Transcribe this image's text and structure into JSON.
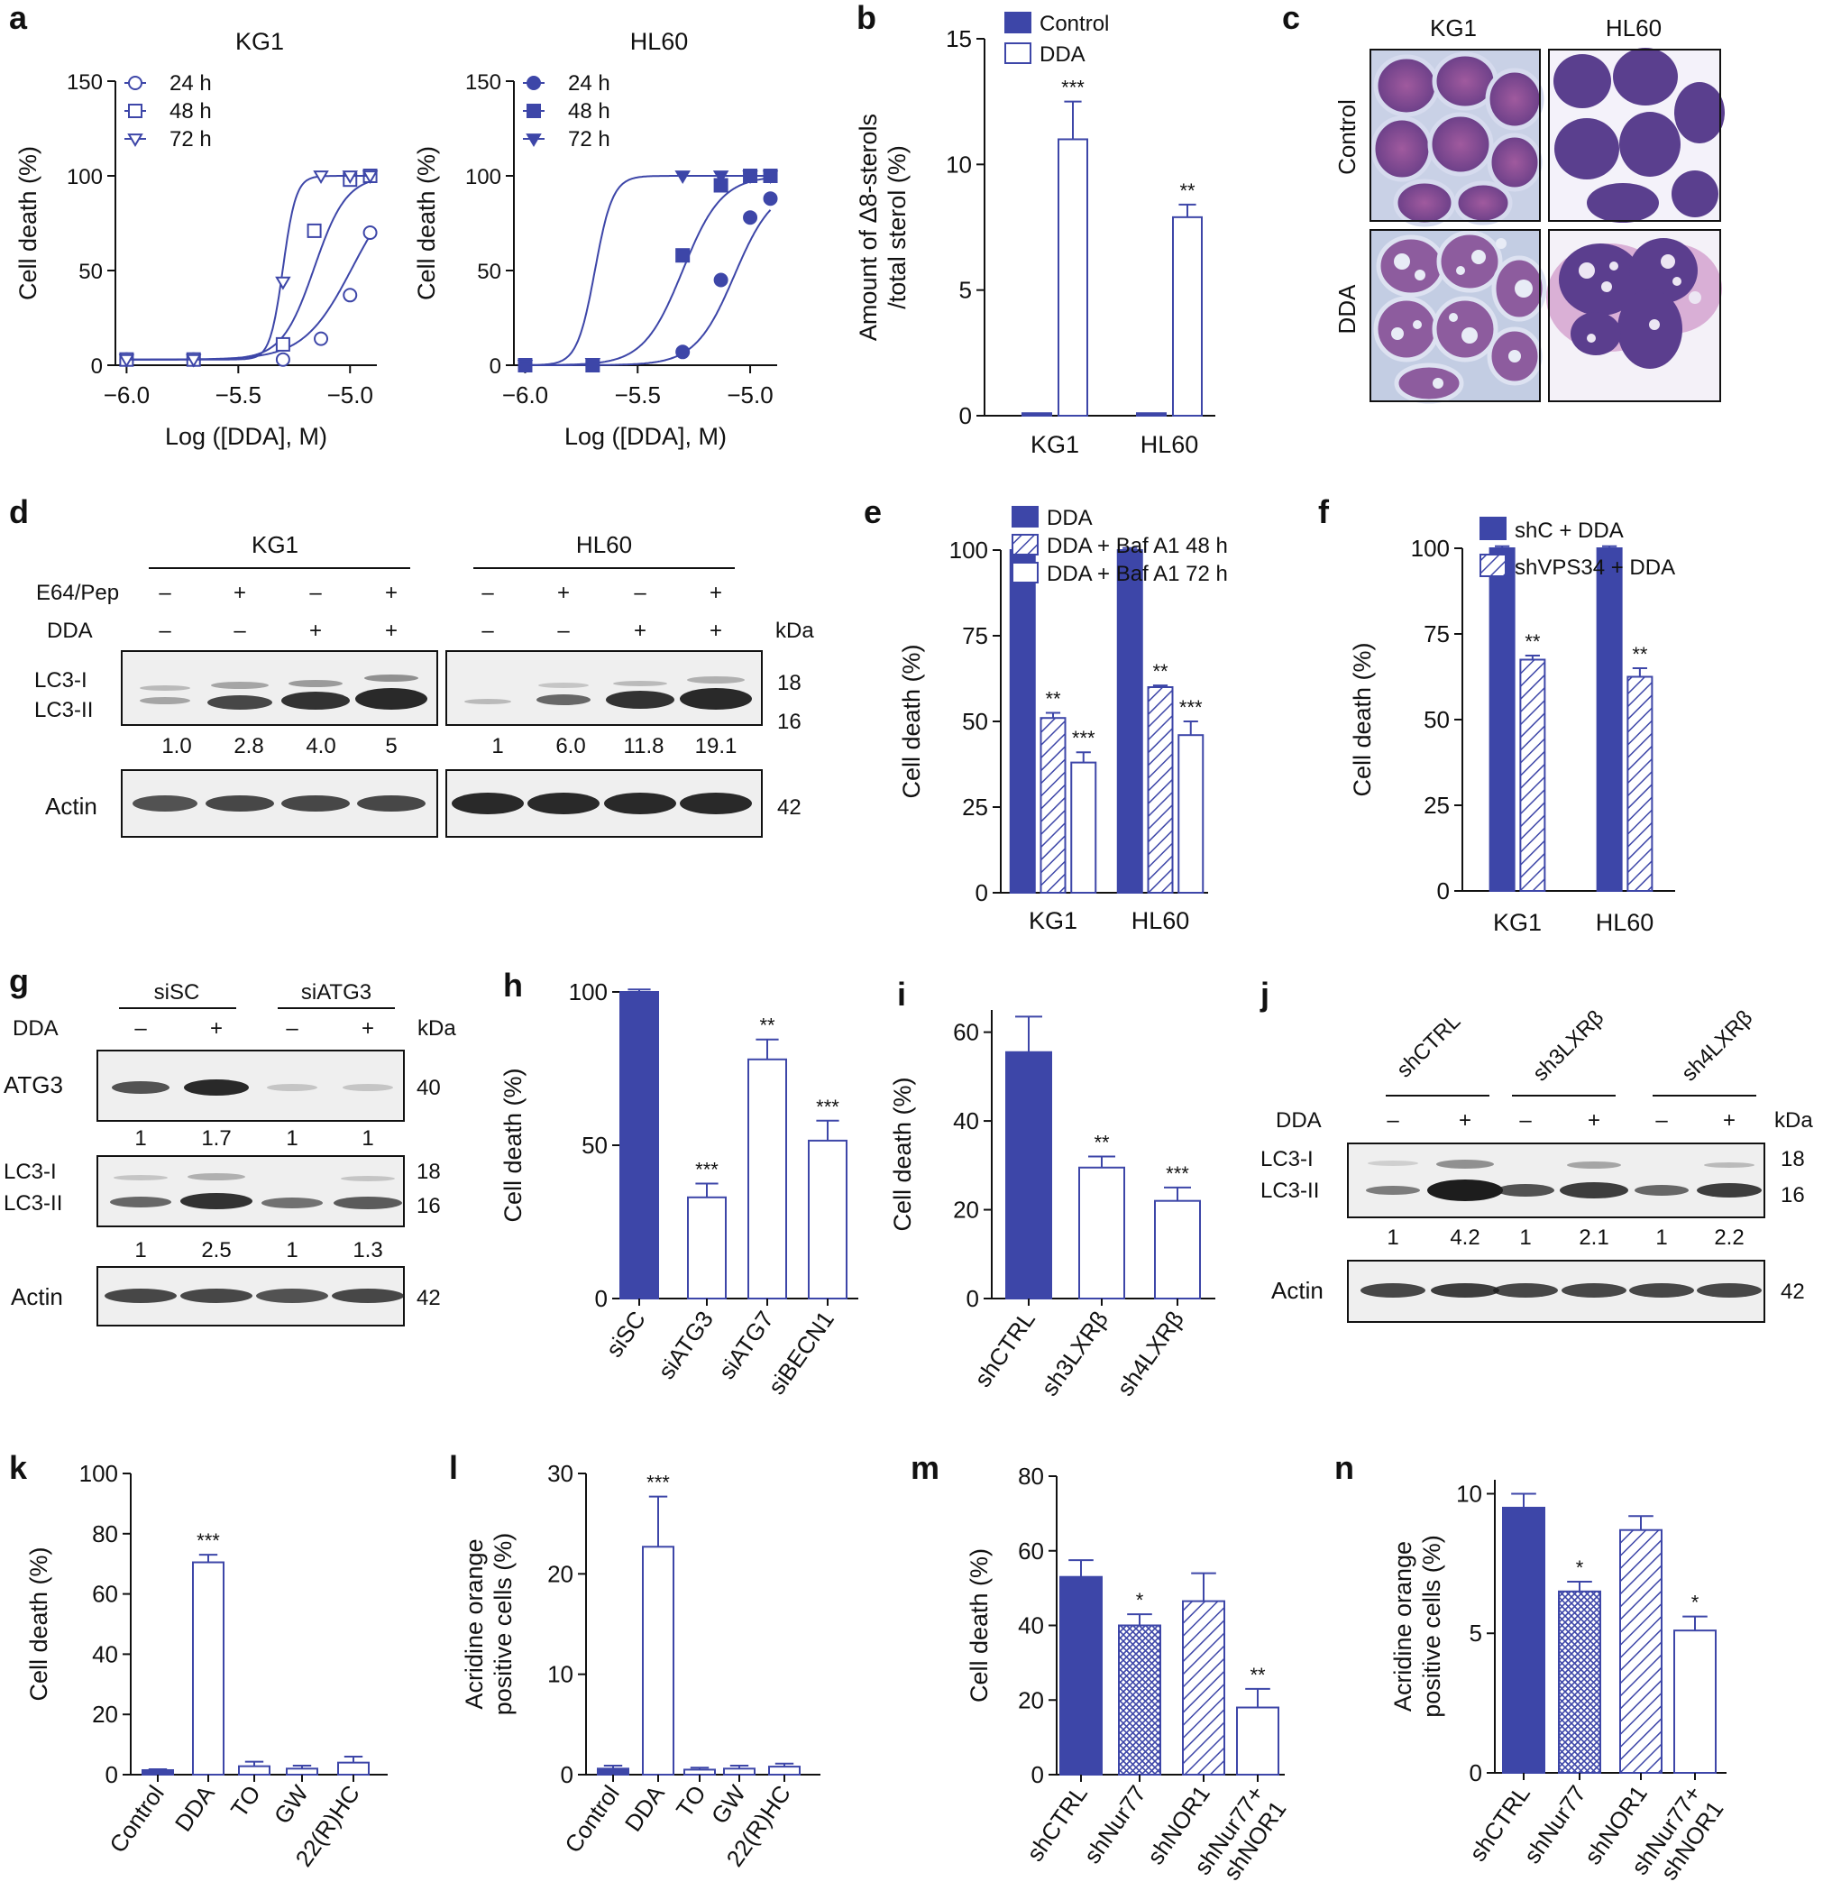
{
  "colors": {
    "blue": "#3d46a8",
    "outline": "#3d46a8",
    "white": "#ffffff"
  },
  "panels": {
    "a": "a",
    "b": "b",
    "c": "c",
    "d": "d",
    "e": "e",
    "f": "f",
    "g": "g",
    "h": "h",
    "i": "i",
    "j": "j",
    "k": "k",
    "l": "l",
    "m": "m",
    "n": "n"
  },
  "microscopy": {
    "cols": [
      "KG1",
      "HL60"
    ],
    "rows": [
      "Control",
      "DDA"
    ],
    "image_desc": "Stained KG1 and HL60 cells, control vs DDA-treated (vacuolated)"
  },
  "blot_d": {
    "groups": [
      "KG1",
      "HL60"
    ],
    "row_labels": [
      "E64/Pep",
      "DDA"
    ],
    "e64": [
      "–",
      "+",
      "–",
      "+",
      "–",
      "+",
      "–",
      "+"
    ],
    "dda": [
      "–",
      "–",
      "+",
      "+",
      "–",
      "–",
      "+",
      "+"
    ],
    "kda": "kDa",
    "bands": [
      "LC3-I",
      "LC3-II"
    ],
    "quant": [
      "1.0",
      "2.8",
      "4.0",
      "5",
      "1",
      "6.0",
      "11.8",
      "19.1"
    ],
    "actin": "Actin",
    "mw": [
      "18",
      "16",
      "42"
    ]
  },
  "blot_g": {
    "groups": [
      "siSC",
      "siATG3"
    ],
    "row_label": "DDA",
    "dda": [
      "–",
      "+",
      "–",
      "+"
    ],
    "kda": "kDa",
    "atg3": "ATG3",
    "atg3_quant": [
      "1",
      "1.7",
      "1",
      "1"
    ],
    "bands": [
      "LC3-I",
      "LC3-II"
    ],
    "lc3_quant": [
      "1",
      "2.5",
      "1",
      "1.3"
    ],
    "actin": "Actin",
    "mw": [
      "40",
      "18",
      "16",
      "42"
    ]
  },
  "blot_j": {
    "groups": [
      "shCTRL",
      "sh3LXRβ",
      "sh4LXRβ"
    ],
    "row_label": "DDA",
    "dda": [
      "–",
      "+",
      "–",
      "+",
      "–",
      "+"
    ],
    "kda": "kDa",
    "bands": [
      "LC3-I",
      "LC3-II"
    ],
    "quant": [
      "1",
      "4.2",
      "1",
      "2.1",
      "1",
      "2.2"
    ],
    "actin": "Actin",
    "mw": [
      "18",
      "16",
      "42"
    ]
  },
  "chart_data": [
    {
      "id": "a1",
      "type": "line",
      "title": "KG1",
      "xlabel": "Log ([DDA], M)",
      "ylabel": "Cell death (%)",
      "xlim": [
        -6.05,
        -4.88
      ],
      "ylim": [
        0,
        150
      ],
      "xticks": [
        -6.0,
        -5.5,
        -5.0
      ],
      "xticklabels": [
        "−6.0",
        "−5.5",
        "−5.0"
      ],
      "yticks": [
        0,
        50,
        100,
        150
      ],
      "series": [
        {
          "name": "24 h",
          "marker": "circle",
          "filled": false,
          "ec50": -4.99,
          "hill": 4,
          "top": 100,
          "bottom": 3,
          "x": [
            -6.0,
            -5.7,
            -5.3,
            -5.13,
            -5.0,
            -4.91
          ],
          "y": [
            3,
            3,
            3,
            14,
            37,
            70
          ]
        },
        {
          "name": "48 h",
          "marker": "square",
          "filled": false,
          "ec50": -5.16,
          "hill": 6,
          "top": 100,
          "bottom": 3,
          "x": [
            -6.0,
            -5.7,
            -5.3,
            -5.16,
            -5.0,
            -4.91
          ],
          "y": [
            3,
            3,
            11,
            71,
            98,
            100
          ]
        },
        {
          "name": "72 h",
          "marker": "triangle-down",
          "filled": false,
          "ec50": -5.3,
          "hill": 15,
          "top": 100,
          "bottom": 3,
          "x": [
            -6.0,
            -5.7,
            -5.3,
            -5.13,
            -5.0,
            -4.91
          ],
          "y": [
            3,
            3,
            44,
            100,
            100,
            100
          ]
        }
      ]
    },
    {
      "id": "a2",
      "type": "line",
      "title": "HL60",
      "xlabel": "Log ([DDA], M)",
      "ylabel": "Cell death (%)",
      "xlim": [
        -6.05,
        -4.88
      ],
      "ylim": [
        0,
        150
      ],
      "xticks": [
        -6.0,
        -5.5,
        -5.0
      ],
      "xticklabels": [
        "−6.0",
        "−5.5",
        "−5.0"
      ],
      "yticks": [
        0,
        50,
        100,
        150
      ],
      "series": [
        {
          "name": "24 h",
          "marker": "circle",
          "filled": true,
          "ec50": -5.07,
          "hill": 5,
          "top": 95,
          "bottom": 0,
          "x": [
            -6.0,
            -5.7,
            -5.3,
            -5.13,
            -5.0,
            -4.91
          ],
          "y": [
            0,
            0,
            7,
            45,
            78,
            88
          ]
        },
        {
          "name": "48 h",
          "marker": "square",
          "filled": true,
          "ec50": -5.3,
          "hill": 5,
          "top": 100,
          "bottom": 0,
          "x": [
            -6.0,
            -5.7,
            -5.3,
            -5.13,
            -5.0,
            -4.91
          ],
          "y": [
            0,
            0,
            58,
            95,
            100,
            100
          ]
        },
        {
          "name": "72 h",
          "marker": "triangle-down",
          "filled": true,
          "ec50": -5.69,
          "hill": 11,
          "top": 100,
          "bottom": 0,
          "x": [
            -6.0,
            -5.7,
            -5.3,
            -5.13,
            -5.0,
            -4.91
          ],
          "y": [
            0,
            1,
            100,
            100,
            100,
            100
          ]
        }
      ]
    },
    {
      "id": "b",
      "type": "bar",
      "categories": [
        "KG1",
        "HL60"
      ],
      "ylabel": "Amount of Δ8-sterols /total sterol (%)",
      "ylim": [
        0,
        15
      ],
      "yticks": [
        0,
        5,
        10,
        15
      ],
      "series": [
        {
          "name": "Control",
          "fill": "solid",
          "values": [
            0.1,
            0.1
          ]
        },
        {
          "name": "DDA",
          "fill": "open",
          "values": [
            11,
            7.9
          ]
        }
      ],
      "errors": [
        [
          0,
          0
        ],
        [
          1.5,
          0.5
        ]
      ],
      "sig": [
        [
          "",
          ""
        ],
        [
          "***",
          "**"
        ]
      ]
    },
    {
      "id": "e",
      "type": "bar",
      "categories": [
        "KG1",
        "HL60"
      ],
      "ylabel": "Cell death (%)",
      "ylim": [
        0,
        100
      ],
      "yticks": [
        0,
        25,
        50,
        75,
        100
      ],
      "series": [
        {
          "name": "DDA",
          "fill": "solid",
          "values": [
            100,
            100
          ]
        },
        {
          "name": "DDA + Baf A1 48 h",
          "fill": "hatch",
          "values": [
            51,
            60
          ]
        },
        {
          "name": "DDA + Baf A1 72 h",
          "fill": "open",
          "values": [
            38,
            46
          ]
        }
      ],
      "errors": [
        [
          0.6,
          0.6
        ],
        [
          1.5,
          0.5
        ],
        [
          3,
          4
        ]
      ],
      "sig": [
        [
          "",
          ""
        ],
        [
          "**",
          "**"
        ],
        [
          "***",
          "***"
        ]
      ]
    },
    {
      "id": "f",
      "type": "bar",
      "categories": [
        "KG1",
        "HL60"
      ],
      "ylabel": "Cell death (%)",
      "ylim": [
        0,
        100
      ],
      "yticks": [
        0,
        25,
        50,
        75,
        100
      ],
      "series": [
        {
          "name": "shC + DDA",
          "fill": "solid",
          "values": [
            100,
            100
          ]
        },
        {
          "name": "shVPS34 + DDA",
          "fill": "hatch",
          "values": [
            67.5,
            62.5
          ]
        }
      ],
      "errors": [
        [
          0.6,
          0.6
        ],
        [
          1.2,
          2.5
        ]
      ],
      "sig": [
        [
          "",
          ""
        ],
        [
          "**",
          "**"
        ]
      ]
    },
    {
      "id": "h",
      "type": "bar",
      "categories": [
        "siSC",
        "siATG3",
        "siATG7",
        "siBECN1"
      ],
      "ylabel": "Cell death (%)",
      "ylim": [
        0,
        100
      ],
      "yticks": [
        0,
        50,
        100
      ],
      "fills": [
        "solid",
        "open",
        "open",
        "open"
      ],
      "values": [
        100,
        33,
        78,
        51.5
      ],
      "errors": [
        0.8,
        4.5,
        6.5,
        6.5
      ],
      "sig": [
        "",
        "***",
        "**",
        "***"
      ]
    },
    {
      "id": "i",
      "type": "bar",
      "categories": [
        "shCTRL",
        "sh3LXRβ",
        "sh4LXRβ"
      ],
      "ylabel": "Cell death (%)",
      "ylim": [
        0,
        65
      ],
      "yticks": [
        0,
        20,
        40,
        60
      ],
      "fills": [
        "solid",
        "open",
        "open"
      ],
      "values": [
        55.5,
        29.5,
        22
      ],
      "errors": [
        8,
        2.5,
        3
      ],
      "sig": [
        "",
        "**",
        "***"
      ]
    },
    {
      "id": "k",
      "type": "bar",
      "categories": [
        "Control",
        "DDA",
        "TO",
        "GW",
        "22(R)HC"
      ],
      "ylabel": "Cell death (%)",
      "ylim": [
        0,
        100
      ],
      "yticks": [
        0,
        20,
        40,
        60,
        80,
        100
      ],
      "fills": [
        "solid",
        "open",
        "open",
        "open",
        "open"
      ],
      "values": [
        1.5,
        70.5,
        2.8,
        2,
        4
      ],
      "errors": [
        0.3,
        2.5,
        1.5,
        1,
        2
      ],
      "sig": [
        "",
        "***",
        "",
        "",
        ""
      ]
    },
    {
      "id": "l",
      "type": "bar",
      "categories": [
        "Control",
        "DDA",
        "TO",
        "GW",
        "22(R)HC"
      ],
      "ylabel": "Acridine orange positive cells (%)",
      "ylim": [
        0,
        30
      ],
      "yticks": [
        0,
        10,
        20,
        30
      ],
      "fills": [
        "solid",
        "open",
        "open",
        "open",
        "open"
      ],
      "values": [
        0.6,
        22.7,
        0.5,
        0.6,
        0.8
      ],
      "errors": [
        0.3,
        5,
        0.2,
        0.3,
        0.3
      ],
      "sig": [
        "",
        "***",
        "",
        "",
        ""
      ]
    },
    {
      "id": "m",
      "type": "bar",
      "categories": [
        "shCTRL",
        "shNur77",
        "shNOR1",
        "shNur77+ shNOR1"
      ],
      "ylabel": "Cell death (%)",
      "ylim": [
        0,
        80
      ],
      "yticks": [
        0,
        20,
        40,
        60,
        80
      ],
      "fills": [
        "solid",
        "cross",
        "hatch",
        "open"
      ],
      "values": [
        53,
        40,
        46.5,
        18
      ],
      "errors": [
        4.5,
        3,
        7.5,
        5
      ],
      "sig": [
        "",
        "*",
        "",
        "**"
      ]
    },
    {
      "id": "n",
      "type": "bar",
      "categories": [
        "shCTRL",
        "shNur77",
        "shNOR1",
        "shNur77+ shNOR1"
      ],
      "ylabel": "Acridine orange positive cells (%)",
      "ylim": [
        0,
        10.5
      ],
      "yticks": [
        0,
        5,
        10
      ],
      "fills": [
        "solid",
        "cross",
        "hatch",
        "open"
      ],
      "values": [
        9.5,
        6.5,
        8.7,
        5.1
      ],
      "errors": [
        0.5,
        0.35,
        0.5,
        0.5
      ],
      "sig": [
        "",
        "*",
        "",
        "*"
      ]
    }
  ]
}
